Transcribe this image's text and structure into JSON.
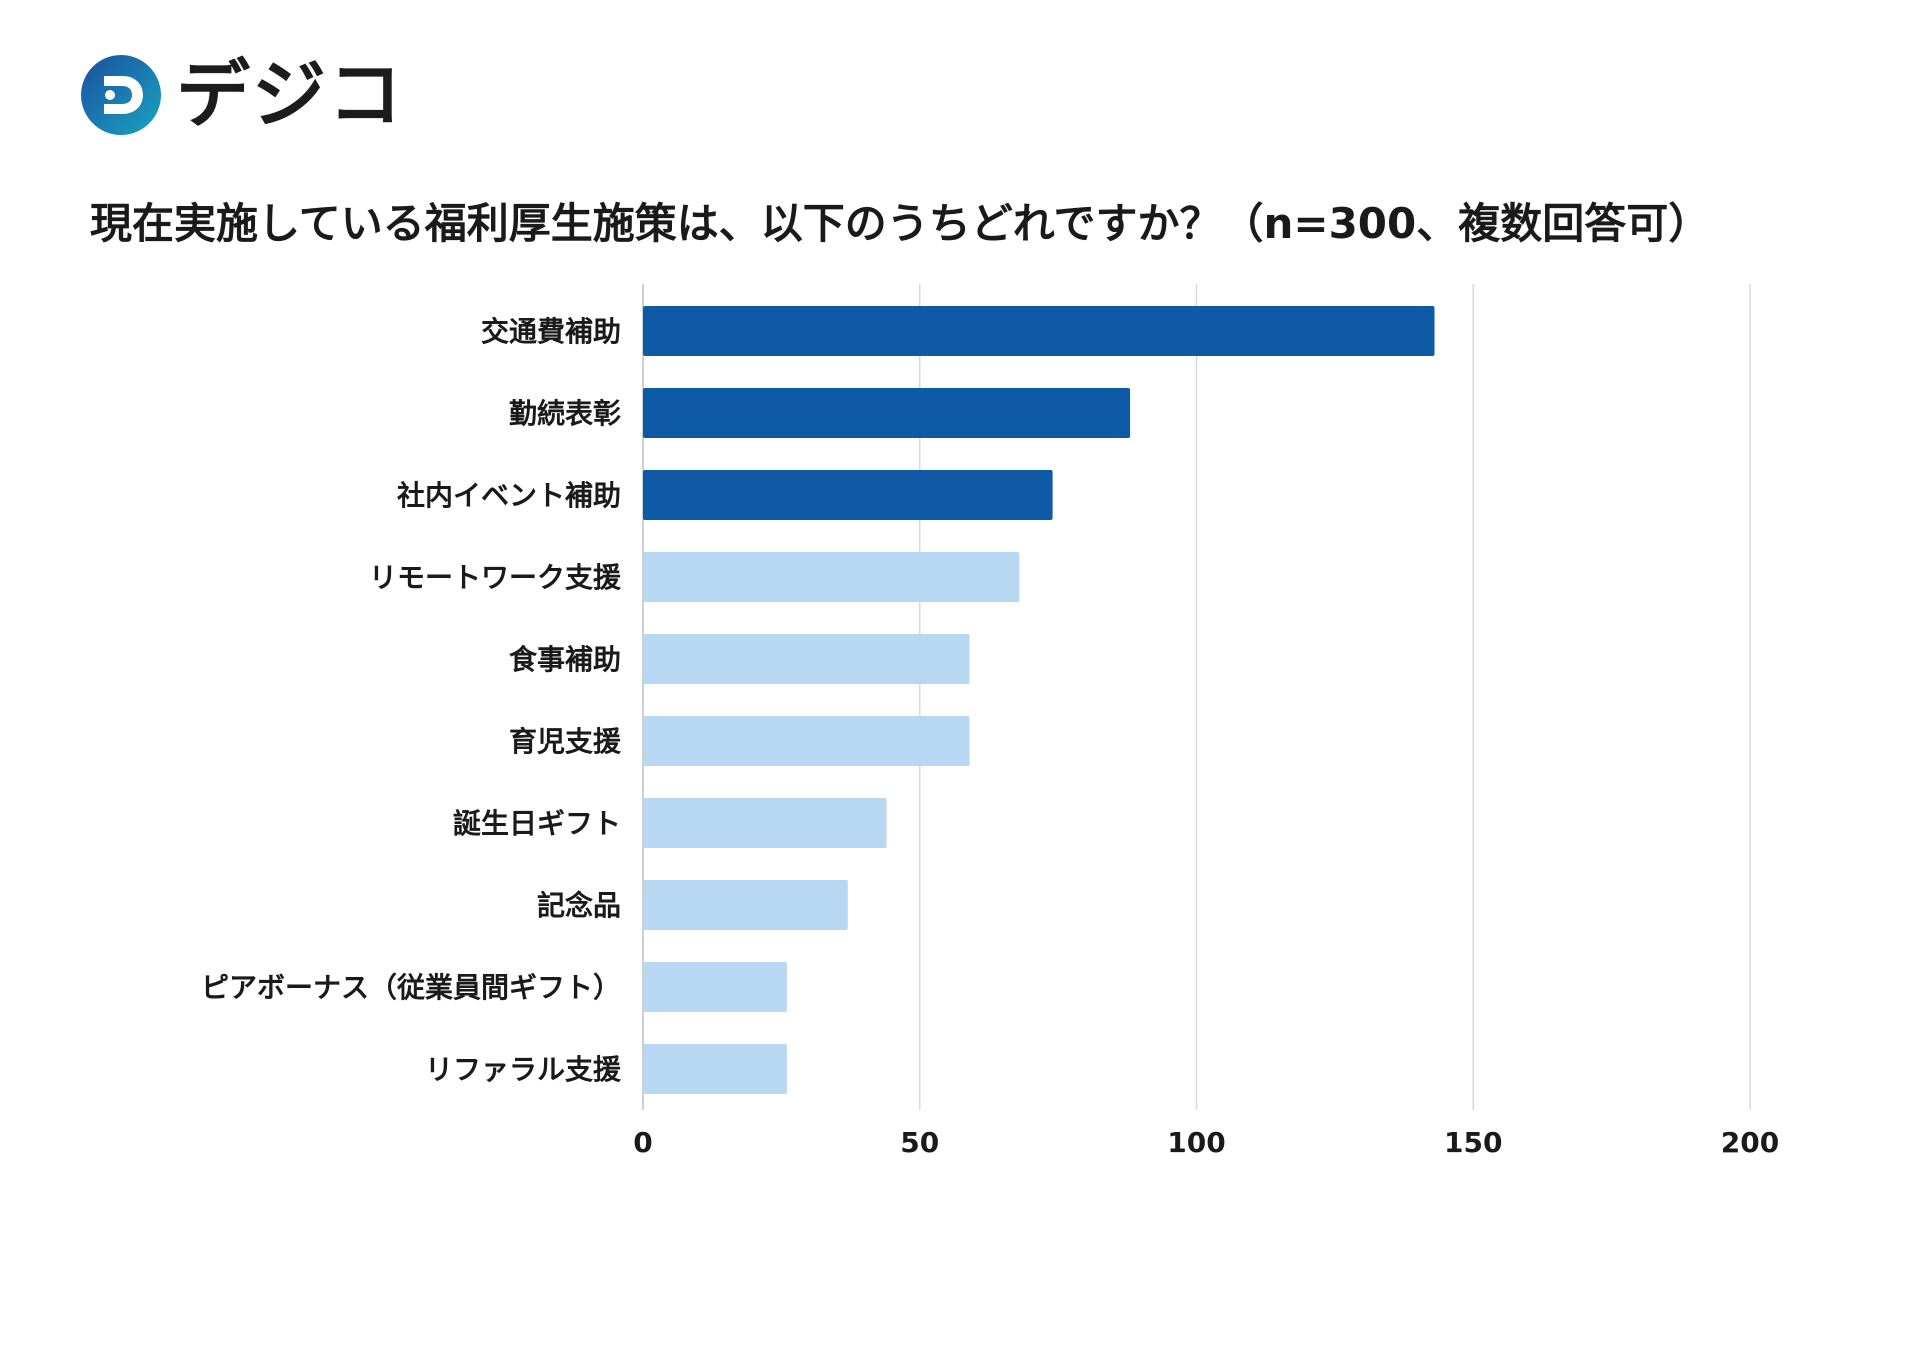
{
  "brand": {
    "name": "デジコ",
    "mark_letter": "D"
  },
  "chart_data": {
    "type": "bar",
    "orientation": "horizontal",
    "title": "現在実施している福利厚生施策は、以下のうちどれですか？（n=300、複数回答可）",
    "categories": [
      "交通費補助",
      "勤続表彰",
      "社内イベント補助",
      "リモートワーク支援",
      "食事補助",
      "育児支援",
      "誕生日ギフト",
      "記念品",
      "ピアボーナス（従業員間ギフト）",
      "リファラル支援"
    ],
    "values": [
      143,
      88,
      74,
      68,
      59,
      59,
      44,
      37,
      26,
      26
    ],
    "highlighted": [
      true,
      true,
      true,
      false,
      false,
      false,
      false,
      false,
      false,
      false
    ],
    "xlim": [
      0,
      200
    ],
    "xticks": [
      0,
      50,
      100,
      150,
      200
    ],
    "grid": true,
    "xlabel": "",
    "ylabel": "",
    "colors": {
      "highlight": "#0e5aa7",
      "normal": "#b7d7f3",
      "grid": "#d9d9d9",
      "axis": "#bfbfbf"
    }
  },
  "logo_colors": {
    "gradient_start": "#1b4fa0",
    "gradient_end": "#1aa5bf",
    "dots": "#1a9fc9"
  }
}
